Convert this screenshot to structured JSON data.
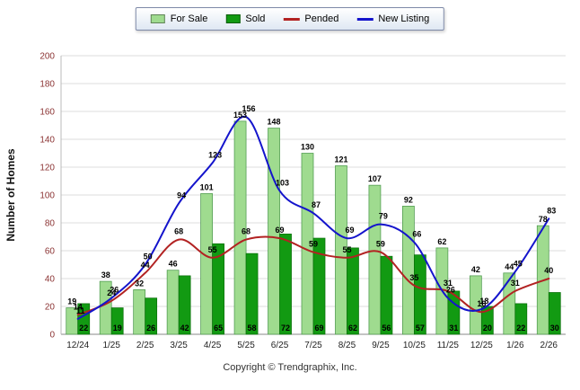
{
  "legend": {
    "items": [
      {
        "label": "For Sale",
        "swatch": "bar",
        "color": "#9FDB8F"
      },
      {
        "label": "Sold",
        "swatch": "bar",
        "color": "#129A12"
      },
      {
        "label": "Pended",
        "swatch": "line",
        "color": "#B22222"
      },
      {
        "label": "New Listing",
        "swatch": "line",
        "color": "#1414CC"
      }
    ]
  },
  "axes": {
    "y_tick_color": "#8B3333",
    "x_tick_color": "#222222",
    "grid_color": "#DCDCDC",
    "axis_line_color": "#888888"
  },
  "footer": {
    "copyright": "Copyright © Trendgraphix, Inc."
  },
  "chart_data": {
    "type": "combo",
    "title": "",
    "ylabel": "Number of Homes",
    "xlabel": "",
    "ylim": [
      0,
      200
    ],
    "ytick_step": 20,
    "grid": true,
    "legend_position": "top-center",
    "categories": [
      "12/24",
      "1/25",
      "2/25",
      "3/25",
      "4/25",
      "5/25",
      "6/25",
      "7/25",
      "8/25",
      "9/25",
      "10/25",
      "11/25",
      "12/25",
      "1/26",
      "2/26"
    ],
    "series": [
      {
        "name": "For Sale",
        "render": "bar",
        "color": "#9FDB8F",
        "border": "#4E9A4E",
        "label_pos": "top",
        "values": [
          19,
          38,
          32,
          46,
          101,
          153,
          148,
          130,
          121,
          107,
          92,
          62,
          42,
          44,
          78
        ]
      },
      {
        "name": "Sold",
        "render": "bar",
        "color": "#129A12",
        "border": "#0A700A",
        "label_pos": "base",
        "values": [
          22,
          19,
          26,
          42,
          65,
          58,
          72,
          69,
          62,
          56,
          57,
          31,
          20,
          22,
          30
        ]
      },
      {
        "name": "Pended",
        "render": "line",
        "color": "#B22222",
        "label_pos": "above",
        "values": [
          14,
          24,
          44,
          68,
          55,
          68,
          69,
          59,
          55,
          59,
          35,
          31,
          16,
          31,
          40
        ]
      },
      {
        "name": "New Listing",
        "render": "line",
        "color": "#1414CC",
        "label_pos": "above",
        "values": [
          11,
          26,
          50,
          94,
          123,
          156,
          103,
          87,
          69,
          79,
          66,
          26,
          18,
          45,
          83
        ]
      }
    ]
  }
}
